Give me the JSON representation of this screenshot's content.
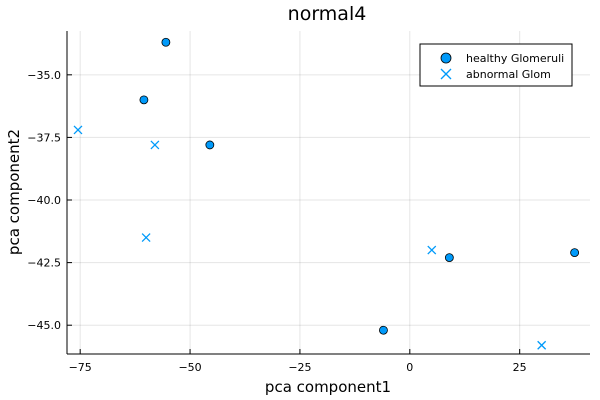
{
  "chart_data": {
    "type": "scatter",
    "title": "normal4",
    "xlabel": "pca component1",
    "ylabel": "pca component2",
    "xlim": [
      -78,
      41
    ],
    "ylim": [
      -46.15,
      -33.25
    ],
    "xticks": [
      -75,
      -50,
      -25,
      0,
      25
    ],
    "yticks": [
      -45.0,
      -42.5,
      -40.0,
      -37.5,
      -35.0
    ],
    "xtick_labels": [
      "−75",
      "−50",
      "−25",
      "0",
      "25"
    ],
    "ytick_labels": [
      "−45.0",
      "−42.5",
      "−40.0",
      "−37.5",
      "−35.0"
    ],
    "grid": true,
    "legend_position": "top-right",
    "series": [
      {
        "name": "healthy Glomeruli",
        "marker": "circle",
        "color": "#009AFA",
        "points": [
          [
            -55.5,
            -33.7
          ],
          [
            -60.5,
            -36.0
          ],
          [
            -45.5,
            -37.8
          ],
          [
            -6.0,
            -45.2
          ],
          [
            9.0,
            -42.3
          ],
          [
            37.5,
            -42.1
          ]
        ]
      },
      {
        "name": "abnormal Glom",
        "marker": "x",
        "color": "#009AFA",
        "points": [
          [
            -75.5,
            -37.2
          ],
          [
            -58.0,
            -37.8
          ],
          [
            -60.0,
            -41.5
          ],
          [
            5.0,
            -42.0
          ],
          [
            30.0,
            -45.8
          ]
        ]
      }
    ]
  }
}
